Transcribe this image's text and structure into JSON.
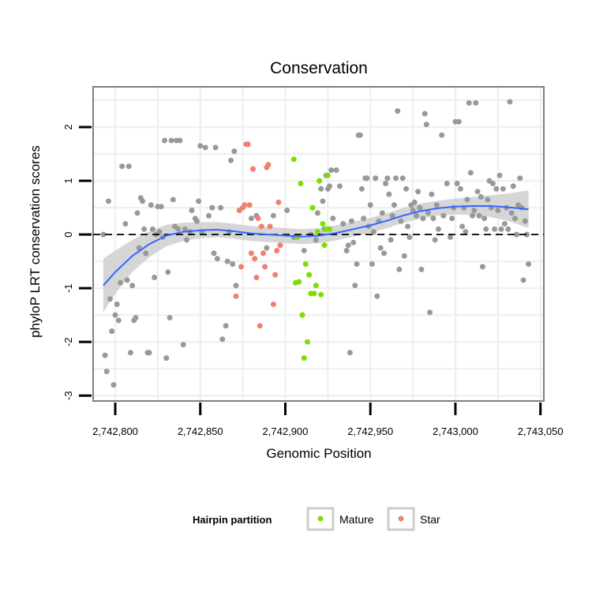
{
  "chart_data": {
    "type": "scatter",
    "title": "Conservation",
    "xlabel": "Genomic Position",
    "ylabel": "phyloP LRT conservation scores",
    "xlim": [
      2742787,
      2743052
    ],
    "ylim": [
      -3.1,
      2.75
    ],
    "x_ticks": [
      2742800,
      2742850,
      2742900,
      2742950,
      2743000,
      2743050
    ],
    "x_tick_labels": [
      "2,742,800",
      "2,742,850",
      "2,742,900",
      "2,742,950",
      "2,743,000",
      "2,743,050"
    ],
    "y_ticks": [
      -3,
      -2,
      -1,
      0,
      1,
      2
    ],
    "y_tick_labels": [
      "-3",
      "-2",
      "-1",
      "0",
      "1",
      "2"
    ],
    "reference_line": {
      "y": 0,
      "style": "dashed"
    },
    "grid": true,
    "legend": {
      "title": "Hairpin partition",
      "placement": "bottom",
      "entries": [
        {
          "name": "Mature",
          "color": "#7be000"
        },
        {
          "name": "Star",
          "color": "#f08070"
        }
      ]
    },
    "colors": {
      "other": "#999999",
      "smooth": "#3366ff",
      "ribbon": "#cccccc"
    },
    "series": [
      {
        "group": "other",
        "color": "#999999",
        "points": [
          [
            2742793,
            0.0
          ],
          [
            2742794,
            -2.25
          ],
          [
            2742795,
            -2.55
          ],
          [
            2742796,
            0.62
          ],
          [
            2742797,
            -1.2
          ],
          [
            2742798,
            -1.8
          ],
          [
            2742799,
            -2.8
          ],
          [
            2742800,
            -1.5
          ],
          [
            2742801,
            -1.3
          ],
          [
            2742802,
            -1.6
          ],
          [
            2742803,
            -0.9
          ],
          [
            2742804,
            1.27
          ],
          [
            2742806,
            0.2
          ],
          [
            2742807,
            -0.85
          ],
          [
            2742808,
            1.27
          ],
          [
            2742809,
            -2.2
          ],
          [
            2742810,
            -0.95
          ],
          [
            2742811,
            -1.6
          ],
          [
            2742812,
            -1.55
          ],
          [
            2742813,
            0.4
          ],
          [
            2742814,
            -0.25
          ],
          [
            2742815,
            0.68
          ],
          [
            2742816,
            0.62
          ],
          [
            2742817,
            0.1
          ],
          [
            2742818,
            -0.35
          ],
          [
            2742819,
            -2.2
          ],
          [
            2742820,
            -2.2
          ],
          [
            2742821,
            0.55
          ],
          [
            2742822,
            0.1
          ],
          [
            2742823,
            -0.8
          ],
          [
            2742824,
            0.0
          ],
          [
            2742825,
            0.52
          ],
          [
            2742826,
            0.05
          ],
          [
            2742827,
            0.52
          ],
          [
            2742828,
            -0.05
          ],
          [
            2742829,
            1.75
          ],
          [
            2742830,
            -2.3
          ],
          [
            2742831,
            -0.7
          ],
          [
            2742832,
            -1.55
          ],
          [
            2742833,
            1.75
          ],
          [
            2742834,
            0.65
          ],
          [
            2742835,
            0.15
          ],
          [
            2742836,
            1.75
          ],
          [
            2742837,
            0.1
          ],
          [
            2742838,
            1.75
          ],
          [
            2742840,
            -2.05
          ],
          [
            2742841,
            0.1
          ],
          [
            2742842,
            -0.1
          ],
          [
            2742844,
            0.05
          ],
          [
            2742845,
            0.45
          ],
          [
            2742847,
            0.3
          ],
          [
            2742848,
            0.25
          ],
          [
            2742849,
            0.62
          ],
          [
            2742850,
            1.65
          ],
          [
            2742851,
            0.05
          ],
          [
            2742853,
            1.62
          ],
          [
            2742855,
            0.35
          ],
          [
            2742857,
            0.5
          ],
          [
            2742858,
            -0.35
          ],
          [
            2742859,
            1.62
          ],
          [
            2742860,
            -0.45
          ],
          [
            2742862,
            0.5
          ],
          [
            2742863,
            -1.95
          ],
          [
            2742865,
            -1.7
          ],
          [
            2742866,
            -0.5
          ],
          [
            2742867,
            0.05
          ],
          [
            2742868,
            1.38
          ],
          [
            2742869,
            -0.55
          ],
          [
            2742870,
            1.55
          ],
          [
            2742871,
            -0.95
          ]
        ]
      },
      {
        "group": "other2",
        "color": "#999999",
        "points": [
          [
            2742873,
            0.45
          ],
          [
            2742880,
            0.3
          ],
          [
            2742883,
            0.35
          ],
          [
            2742889,
            -0.25
          ],
          [
            2742893,
            0.35
          ],
          [
            2742897,
            -0.2
          ],
          [
            2742901,
            0.45
          ],
          [
            2742905,
            -0.05
          ],
          [
            2742911,
            -0.3
          ],
          [
            2742915,
            0.0
          ],
          [
            2742918,
            -0.1
          ],
          [
            2742919,
            0.4
          ],
          [
            2742921,
            0.85
          ],
          [
            2742922,
            0.62
          ],
          [
            2742923,
            0.1
          ],
          [
            2742924,
            1.1
          ],
          [
            2742925,
            0.85
          ],
          [
            2742926,
            0.9
          ],
          [
            2742927,
            1.2
          ],
          [
            2742928,
            0.3
          ],
          [
            2742930,
            1.2
          ],
          [
            2742932,
            0.9
          ],
          [
            2742934,
            0.2
          ],
          [
            2742936,
            -0.3
          ],
          [
            2742937,
            -0.2
          ],
          [
            2742938,
            -2.2
          ],
          [
            2742939,
            0.25
          ],
          [
            2742940,
            -0.15
          ],
          [
            2742941,
            -0.95
          ],
          [
            2742942,
            -0.55
          ],
          [
            2742943,
            1.85
          ],
          [
            2742944,
            1.85
          ],
          [
            2742945,
            0.85
          ],
          [
            2742946,
            0.3
          ],
          [
            2742947,
            1.05
          ],
          [
            2742948,
            1.05
          ],
          [
            2742949,
            0.15
          ],
          [
            2742950,
            0.55
          ],
          [
            2742951,
            -0.55
          ],
          [
            2742952,
            0.05
          ],
          [
            2742953,
            1.05
          ],
          [
            2742954,
            -1.15
          ],
          [
            2742955,
            0.25
          ],
          [
            2742956,
            -0.25
          ],
          [
            2742957,
            0.4
          ],
          [
            2742958,
            -0.35
          ],
          [
            2742959,
            0.95
          ],
          [
            2742960,
            1.05
          ],
          [
            2742961,
            0.75
          ],
          [
            2742962,
            -0.1
          ],
          [
            2742963,
            0.35
          ],
          [
            2742964,
            0.55
          ],
          [
            2742965,
            1.05
          ],
          [
            2742966,
            2.3
          ],
          [
            2742967,
            -0.65
          ],
          [
            2742968,
            0.25
          ],
          [
            2742969,
            1.05
          ],
          [
            2742970,
            -0.4
          ],
          [
            2742971,
            0.85
          ],
          [
            2742972,
            0.15
          ],
          [
            2742973,
            -0.05
          ],
          [
            2742974,
            0.55
          ],
          [
            2742975,
            0.45
          ],
          [
            2742976,
            0.6
          ],
          [
            2742977,
            0.35
          ],
          [
            2742978,
            0.8
          ],
          [
            2742979,
            0.5
          ],
          [
            2742980,
            -0.65
          ],
          [
            2742981,
            0.3
          ],
          [
            2742982,
            2.25
          ],
          [
            2742983,
            2.05
          ],
          [
            2742984,
            0.4
          ],
          [
            2742985,
            -1.45
          ],
          [
            2742986,
            0.75
          ],
          [
            2742987,
            0.3
          ],
          [
            2742988,
            -0.1
          ],
          [
            2742989,
            0.55
          ],
          [
            2742990,
            0.1
          ],
          [
            2742992,
            1.85
          ],
          [
            2742993,
            0.35
          ],
          [
            2742995,
            0.95
          ],
          [
            2742997,
            -0.05
          ],
          [
            2742998,
            0.3
          ],
          [
            2742999,
            0.5
          ],
          [
            2743000,
            2.1
          ],
          [
            2743001,
            0.95
          ],
          [
            2743002,
            2.1
          ],
          [
            2743003,
            0.85
          ],
          [
            2743004,
            0.15
          ],
          [
            2743005,
            0.5
          ],
          [
            2743006,
            0.05
          ],
          [
            2743007,
            0.65
          ],
          [
            2743008,
            2.45
          ],
          [
            2743009,
            1.15
          ],
          [
            2743010,
            0.35
          ],
          [
            2743011,
            0.45
          ],
          [
            2743012,
            2.45
          ],
          [
            2743013,
            0.8
          ],
          [
            2743014,
            0.35
          ],
          [
            2743015,
            0.7
          ],
          [
            2743016,
            -0.6
          ],
          [
            2743017,
            0.3
          ],
          [
            2743018,
            0.1
          ],
          [
            2743019,
            0.65
          ],
          [
            2743020,
            1.0
          ],
          [
            2743021,
            0.5
          ],
          [
            2743022,
            0.95
          ],
          [
            2743023,
            0.1
          ],
          [
            2743024,
            0.85
          ],
          [
            2743025,
            0.45
          ],
          [
            2743026,
            1.1
          ],
          [
            2743027,
            0.1
          ],
          [
            2743028,
            0.85
          ],
          [
            2743029,
            0.2
          ],
          [
            2743030,
            0.5
          ],
          [
            2743031,
            0.1
          ],
          [
            2743032,
            2.47
          ],
          [
            2743033,
            0.4
          ],
          [
            2743034,
            0.9
          ],
          [
            2743035,
            0.3
          ],
          [
            2743036,
            0.0
          ],
          [
            2743037,
            0.55
          ],
          [
            2743038,
            1.05
          ],
          [
            2743039,
            0.5
          ],
          [
            2743040,
            -0.85
          ],
          [
            2743041,
            0.25
          ],
          [
            2743042,
            0.0
          ],
          [
            2743043,
            -0.55
          ]
        ]
      },
      {
        "name": "Star",
        "color": "#f08070",
        "points": [
          [
            2742871,
            -1.15
          ],
          [
            2742873,
            0.45
          ],
          [
            2742874,
            -0.6
          ],
          [
            2742875,
            0.5
          ],
          [
            2742876,
            0.55
          ],
          [
            2742877,
            1.68
          ],
          [
            2742878,
            1.68
          ],
          [
            2742879,
            0.55
          ],
          [
            2742880,
            -0.35
          ],
          [
            2742881,
            1.22
          ],
          [
            2742882,
            -0.45
          ],
          [
            2742883,
            -0.8
          ],
          [
            2742884,
            0.3
          ],
          [
            2742885,
            -1.7
          ],
          [
            2742886,
            0.15
          ],
          [
            2742887,
            -0.35
          ],
          [
            2742888,
            -0.6
          ],
          [
            2742889,
            1.25
          ],
          [
            2742890,
            1.3
          ],
          [
            2742891,
            0.15
          ],
          [
            2742893,
            -1.3
          ],
          [
            2742894,
            -0.75
          ],
          [
            2742895,
            -0.3
          ],
          [
            2742896,
            0.6
          ],
          [
            2742897,
            -0.2
          ]
        ]
      },
      {
        "name": "Mature",
        "color": "#7be000",
        "points": [
          [
            2742905,
            1.4
          ],
          [
            2742906,
            -0.9
          ],
          [
            2742907,
            -0.05
          ],
          [
            2742908,
            -0.88
          ],
          [
            2742909,
            0.95
          ],
          [
            2742910,
            -1.5
          ],
          [
            2742911,
            -2.3
          ],
          [
            2742912,
            -0.55
          ],
          [
            2742913,
            -2.0
          ],
          [
            2742914,
            -0.75
          ],
          [
            2742915,
            -1.1
          ],
          [
            2742916,
            0.5
          ],
          [
            2742917,
            -1.1
          ],
          [
            2742918,
            -0.95
          ],
          [
            2742919,
            0.05
          ],
          [
            2742920,
            1.0
          ],
          [
            2742921,
            -1.12
          ],
          [
            2742922,
            0.2
          ],
          [
            2742923,
            -0.2
          ],
          [
            2742924,
            0.1
          ],
          [
            2742925,
            1.1
          ],
          [
            2742926,
            0.1
          ]
        ]
      }
    ],
    "smooth": {
      "x": [
        2742793,
        2742800,
        2742810,
        2742820,
        2742830,
        2742840,
        2742850,
        2742860,
        2742870,
        2742880,
        2742890,
        2742900,
        2742910,
        2742920,
        2742930,
        2742940,
        2742950,
        2742960,
        2742970,
        2742980,
        2742990,
        2743000,
        2743010,
        2743020,
        2743030,
        2743043
      ],
      "y": [
        -0.95,
        -0.7,
        -0.4,
        -0.18,
        -0.02,
        0.05,
        0.08,
        0.09,
        0.06,
        0.02,
        0.0,
        -0.02,
        -0.04,
        -0.02,
        0.03,
        0.1,
        0.17,
        0.26,
        0.36,
        0.44,
        0.49,
        0.52,
        0.53,
        0.53,
        0.51,
        0.47
      ],
      "lower": [
        -1.45,
        -1.1,
        -0.7,
        -0.42,
        -0.22,
        -0.12,
        -0.07,
        -0.05,
        -0.08,
        -0.12,
        -0.14,
        -0.16,
        -0.18,
        -0.16,
        -0.11,
        -0.04,
        0.03,
        0.12,
        0.22,
        0.3,
        0.35,
        0.37,
        0.36,
        0.33,
        0.26,
        0.12
      ],
      "upper": [
        -0.45,
        -0.3,
        -0.1,
        0.06,
        0.18,
        0.22,
        0.23,
        0.23,
        0.2,
        0.16,
        0.14,
        0.12,
        0.1,
        0.12,
        0.17,
        0.24,
        0.31,
        0.4,
        0.5,
        0.58,
        0.63,
        0.67,
        0.7,
        0.73,
        0.76,
        0.82
      ]
    }
  }
}
